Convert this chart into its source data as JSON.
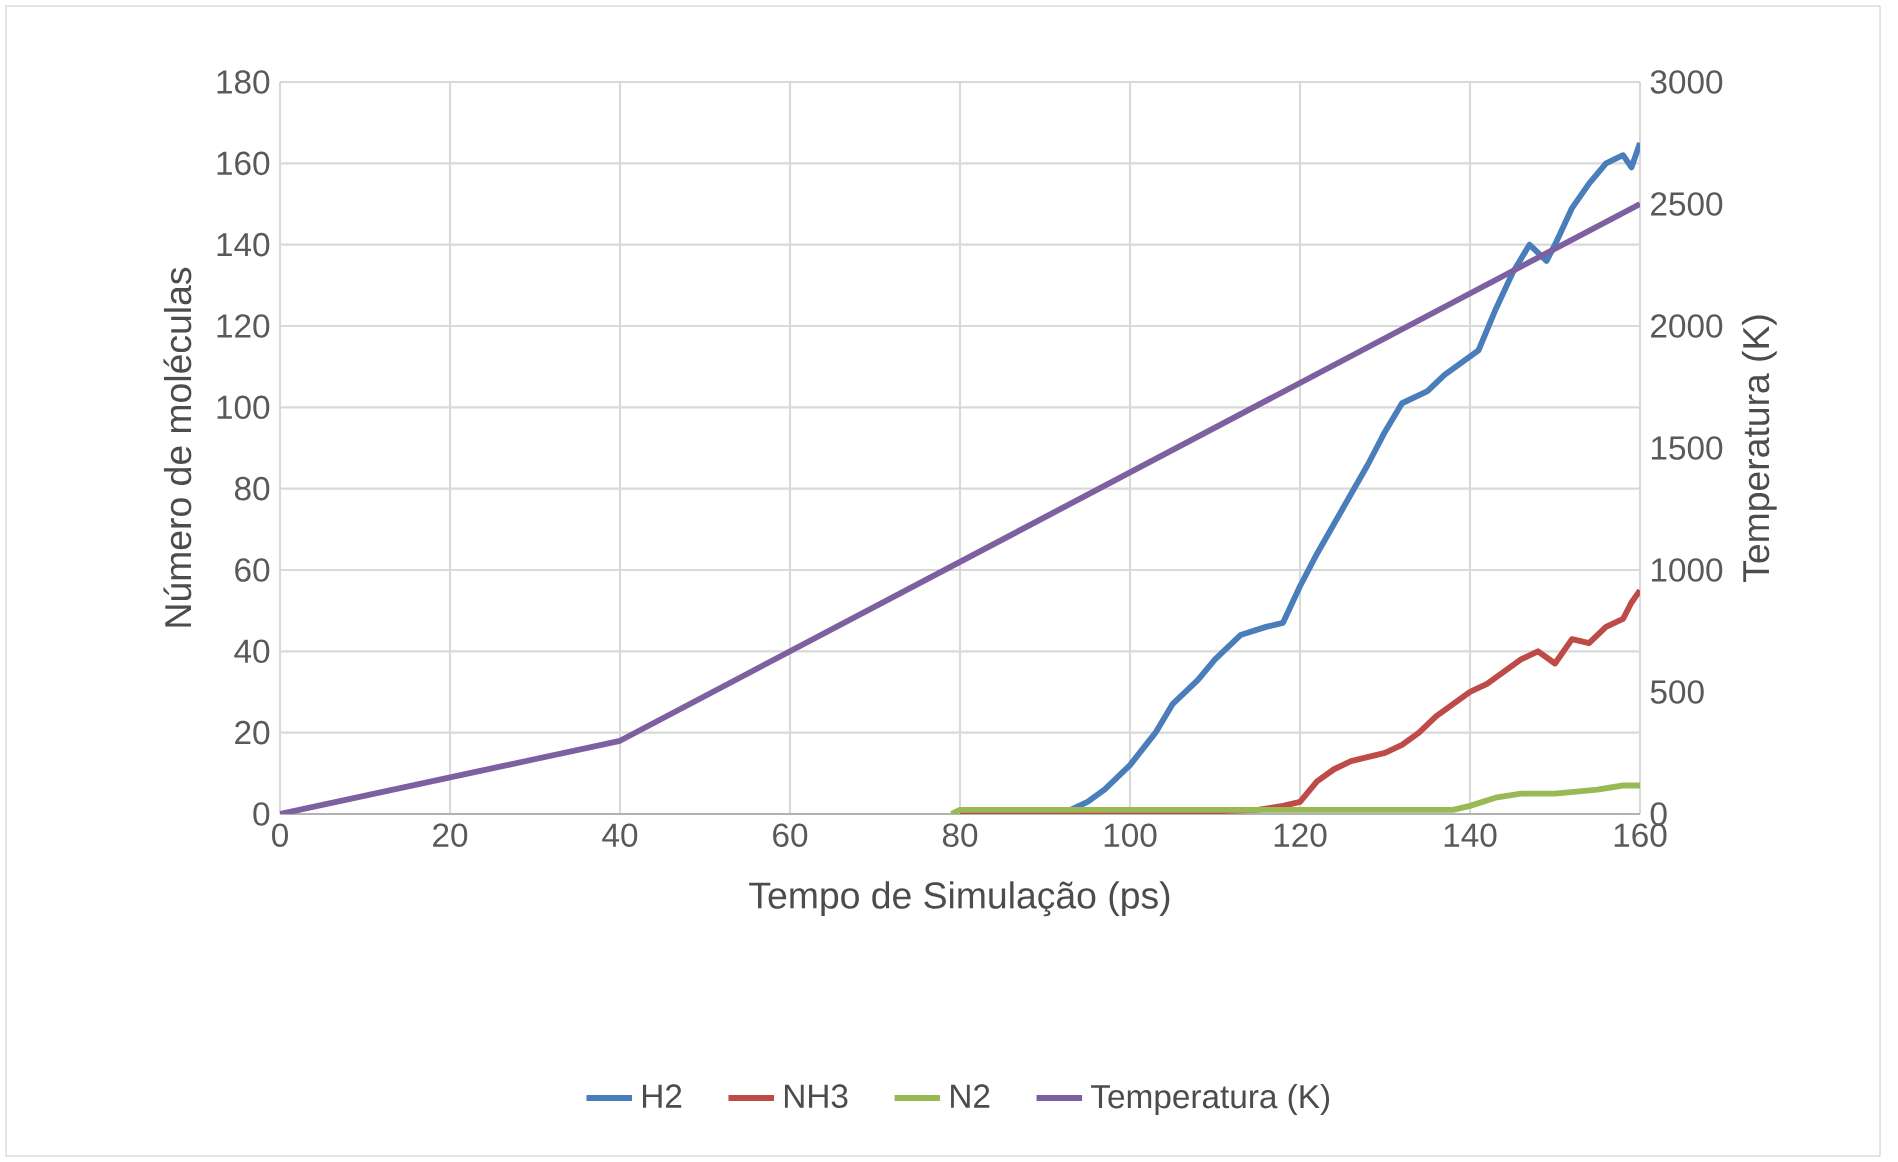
{
  "chart_data": {
    "type": "line",
    "xlabel": "Tempo de Simulação (ps)",
    "ylabel": "Número de moléculas",
    "y2label": "Temperatura (K)",
    "xlim": [
      0,
      160
    ],
    "xticks": [
      0,
      20,
      40,
      60,
      80,
      100,
      120,
      140,
      160
    ],
    "ylim": [
      0,
      180
    ],
    "yticks": [
      0,
      20,
      40,
      60,
      80,
      100,
      120,
      140,
      160,
      180
    ],
    "y2lim": [
      0,
      3000
    ],
    "y2ticks": [
      0,
      500,
      1000,
      1500,
      2000,
      2500,
      3000
    ],
    "grid": true,
    "legend": "bottom",
    "series": [
      {
        "name": "H2",
        "color": "#4a7ebb",
        "x": [
          90,
          93,
          95,
          97,
          100,
          103,
          105,
          108,
          110,
          113,
          116,
          118,
          120,
          122,
          125,
          128,
          130,
          132,
          135,
          137,
          139,
          141,
          143,
          145,
          147,
          149,
          150,
          152,
          154,
          156,
          158,
          159,
          160
        ],
        "values": [
          0,
          1,
          3,
          6,
          12,
          20,
          27,
          33,
          38,
          44,
          46,
          47,
          56,
          64,
          75,
          86,
          94,
          101,
          104,
          108,
          111,
          114,
          124,
          133,
          140,
          136,
          140,
          149,
          155,
          160,
          162,
          159,
          165
        ]
      },
      {
        "name": "NH3",
        "color": "#be4b48",
        "x": [
          80,
          100,
          115,
          118,
          120,
          122,
          124,
          126,
          128,
          130,
          132,
          134,
          136,
          138,
          140,
          142,
          144,
          146,
          148,
          150,
          152,
          154,
          156,
          158,
          159,
          160
        ],
        "values": [
          0,
          0,
          1,
          2,
          3,
          8,
          11,
          13,
          14,
          15,
          17,
          20,
          24,
          27,
          30,
          32,
          35,
          38,
          40,
          37,
          43,
          42,
          46,
          48,
          52,
          55
        ]
      },
      {
        "name": "N2",
        "color": "#98b954",
        "x": [
          79,
          80,
          100,
          120,
          130,
          138,
          140,
          143,
          146,
          150,
          155,
          158,
          160
        ],
        "values": [
          0,
          1,
          1,
          1,
          1,
          1,
          2,
          4,
          5,
          5,
          6,
          7,
          7
        ]
      },
      {
        "name": "Temperatura (K)",
        "color": "#7d60a0",
        "axis": "y2",
        "x": [
          0,
          40,
          160
        ],
        "values": [
          0,
          300,
          2500
        ]
      }
    ]
  }
}
